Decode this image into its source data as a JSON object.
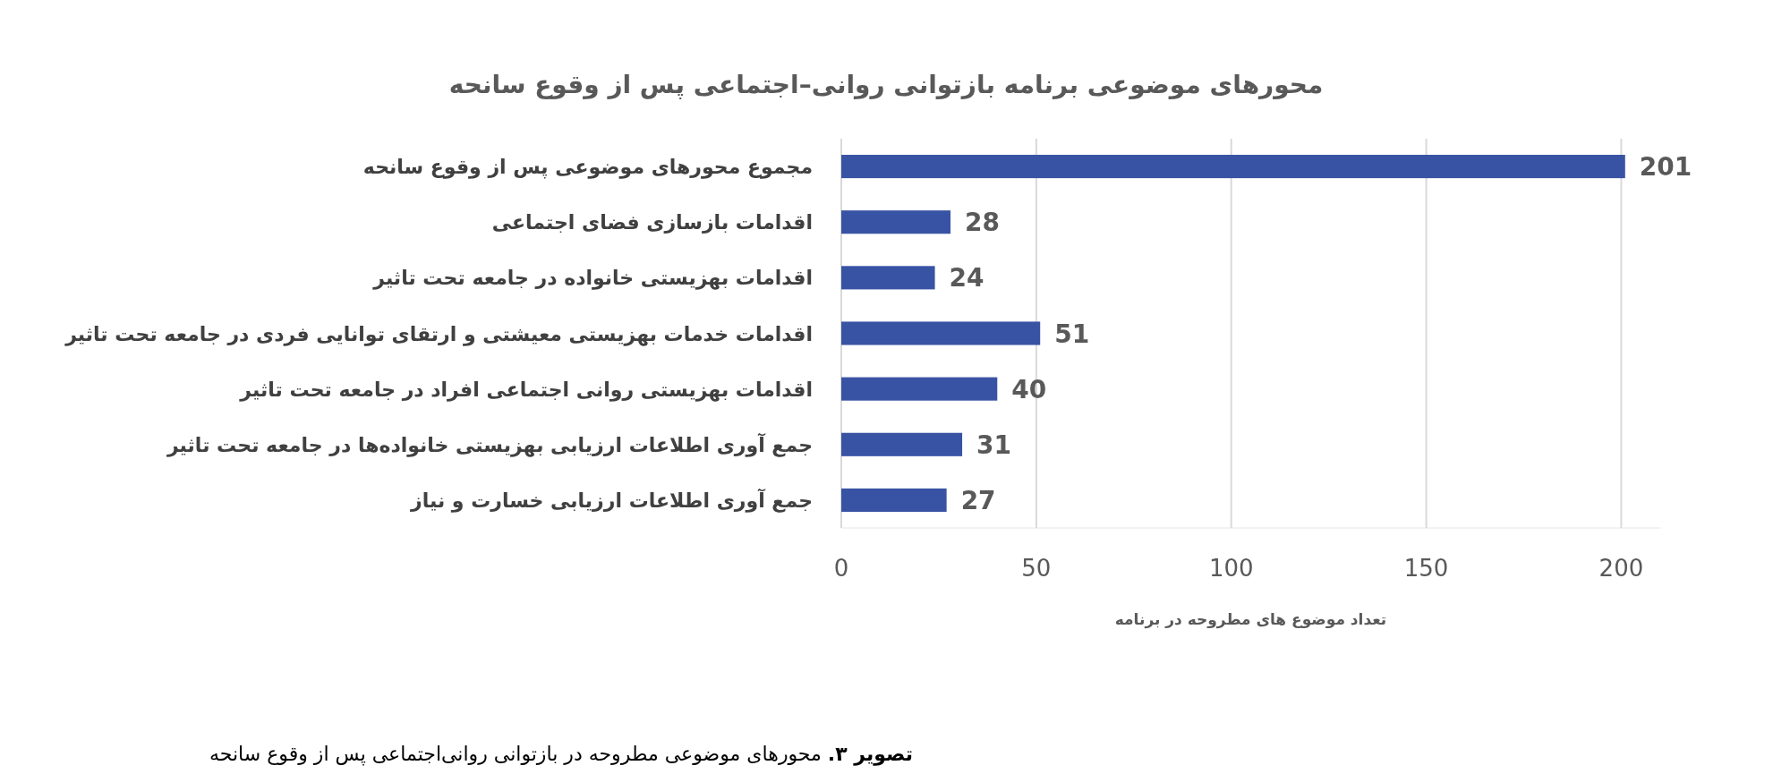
{
  "chart_data": {
    "type": "bar",
    "orientation": "horizontal",
    "title": "محورهای موضوعی برنامه بازتوانی روانی–اجتماعی پس از وقوع سانحه",
    "xlabel": "تعداد موضوع های مطروحه در برنامه",
    "categories": [
      "مجموع محورهای موضوعی پس از وقوع سانحه",
      "اقدامات بازسازی فضای اجتماعی",
      "اقدامات بهزیستی خانواده در جامعه تحت تاثیر",
      "اقدامات خدمات بهزیستی معیشتی و ارتقای توانایی فردی در جامعه تحت تاثیر",
      "اقدامات بهزیستی روانی اجتماعی افراد در جامعه تحت تاثیر",
      "جمع آوری اطلاعات ارزیابی بهزیستی خانواده‌ها در جامعه تحت تاثیر",
      "جمع آوری اطلاعات ارزیابی خسارت و نیاز"
    ],
    "values": [
      201,
      28,
      24,
      51,
      40,
      31,
      27
    ],
    "color": "#3953a4",
    "xlim": [
      0,
      210
    ],
    "xticks": [
      0,
      50,
      100,
      150,
      200
    ],
    "grid": "x",
    "data_labels": true,
    "annotations": [
      "تصویر ۳. محورهای موضوعی مطروحه در بازتوانی روانی‌اجتماعی پس از وقوع سانحه"
    ]
  }
}
